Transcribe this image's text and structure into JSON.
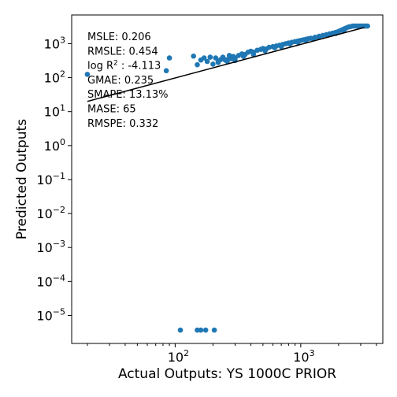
{
  "chart_data": {
    "type": "scatter",
    "xlabel": "Actual Outputs: YS 1000C PRIOR",
    "ylabel": "Predicted Outputs",
    "x_scale": "log",
    "y_scale": "log",
    "xlim": [
      15,
      4500
    ],
    "ylim": [
      1.5e-06,
      7000
    ],
    "grid": false,
    "x_ticks": [
      {
        "value": 100,
        "base": "10",
        "exp": "2"
      },
      {
        "value": 1000,
        "base": "10",
        "exp": "3"
      }
    ],
    "y_ticks": [
      {
        "value": 1e-05,
        "base": "10",
        "exp": "−5"
      },
      {
        "value": 0.0001,
        "base": "10",
        "exp": "−4"
      },
      {
        "value": 0.001,
        "base": "10",
        "exp": "−3"
      },
      {
        "value": 0.01,
        "base": "10",
        "exp": "−2"
      },
      {
        "value": 0.1,
        "base": "10",
        "exp": "−1"
      },
      {
        "value": 1,
        "base": "10",
        "exp": "0"
      },
      {
        "value": 10,
        "base": "10",
        "exp": "1"
      },
      {
        "value": 100,
        "base": "10",
        "exp": "2"
      },
      {
        "value": 1000,
        "base": "10",
        "exp": "3"
      }
    ],
    "marker_color": "#1f77b4",
    "fit_line": {
      "color": "#000000",
      "points": [
        [
          20,
          20
        ],
        [
          3200,
          3000
        ]
      ]
    },
    "points": [
      [
        20,
        125
      ],
      [
        85,
        160
      ],
      [
        90,
        380
      ],
      [
        140,
        430
      ],
      [
        150,
        240
      ],
      [
        160,
        330
      ],
      [
        170,
        380
      ],
      [
        180,
        300
      ],
      [
        190,
        400
      ],
      [
        200,
        250
      ],
      [
        210,
        380
      ],
      [
        220,
        300
      ],
      [
        230,
        340
      ],
      [
        240,
        400
      ],
      [
        250,
        330
      ],
      [
        260,
        300
      ],
      [
        270,
        450
      ],
      [
        280,
        360
      ],
      [
        290,
        420
      ],
      [
        300,
        380
      ],
      [
        320,
        450
      ],
      [
        340,
        500
      ],
      [
        360,
        480
      ],
      [
        380,
        560
      ],
      [
        400,
        600
      ],
      [
        420,
        560
      ],
      [
        450,
        640
      ],
      [
        480,
        680
      ],
      [
        500,
        720
      ],
      [
        530,
        700
      ],
      [
        560,
        780
      ],
      [
        600,
        820
      ],
      [
        640,
        860
      ],
      [
        680,
        900
      ],
      [
        720,
        950
      ],
      [
        760,
        1000
      ],
      [
        800,
        1050
      ],
      [
        850,
        1100
      ],
      [
        900,
        1150
      ],
      [
        950,
        1200
      ],
      [
        1000,
        1250
      ],
      [
        1050,
        1300
      ],
      [
        1100,
        1350
      ],
      [
        1150,
        1400
      ],
      [
        1200,
        1450
      ],
      [
        1300,
        1550
      ],
      [
        1400,
        1650
      ],
      [
        1500,
        1750
      ],
      [
        1600,
        1850
      ],
      [
        1700,
        1950
      ],
      [
        1800,
        2050
      ],
      [
        1900,
        2150
      ],
      [
        2000,
        2300
      ],
      [
        2100,
        2500
      ],
      [
        2200,
        2700
      ],
      [
        2300,
        2900
      ],
      [
        2400,
        3100
      ],
      [
        2500,
        3200
      ],
      [
        2600,
        3300
      ],
      [
        2700,
        3300
      ],
      [
        2800,
        3300
      ],
      [
        2900,
        3300
      ],
      [
        3000,
        3300
      ],
      [
        3100,
        3300
      ],
      [
        3200,
        3300
      ],
      [
        3300,
        3300
      ],
      [
        3400,
        3300
      ],
      [
        220,
        280
      ],
      [
        260,
        340
      ],
      [
        300,
        320
      ],
      [
        350,
        420
      ],
      [
        420,
        480
      ],
      [
        520,
        620
      ],
      [
        620,
        760
      ],
      [
        700,
        820
      ],
      [
        820,
        980
      ],
      [
        950,
        1100
      ],
      [
        1100,
        1250
      ],
      [
        1250,
        1400
      ],
      [
        1400,
        1550
      ],
      [
        1650,
        1800
      ],
      [
        1900,
        2000
      ],
      [
        2200,
        2400
      ],
      [
        110,
        3.7e-06
      ],
      [
        150,
        3.7e-06
      ],
      [
        160,
        3.7e-06
      ],
      [
        175,
        3.7e-06
      ],
      [
        205,
        3.7e-06
      ]
    ],
    "annotations": [
      {
        "text": "MSLE: 0.206"
      },
      {
        "text": "RMSLE: 0.454"
      },
      {
        "text": "log R",
        "sup": "2",
        "suffix": " : -4.113"
      },
      {
        "text": "GMAE: 0.235"
      },
      {
        "text": "SMAPE: 13.13%"
      },
      {
        "text": "MASE: 65"
      },
      {
        "text": "RMSPE: 0.332"
      }
    ]
  }
}
